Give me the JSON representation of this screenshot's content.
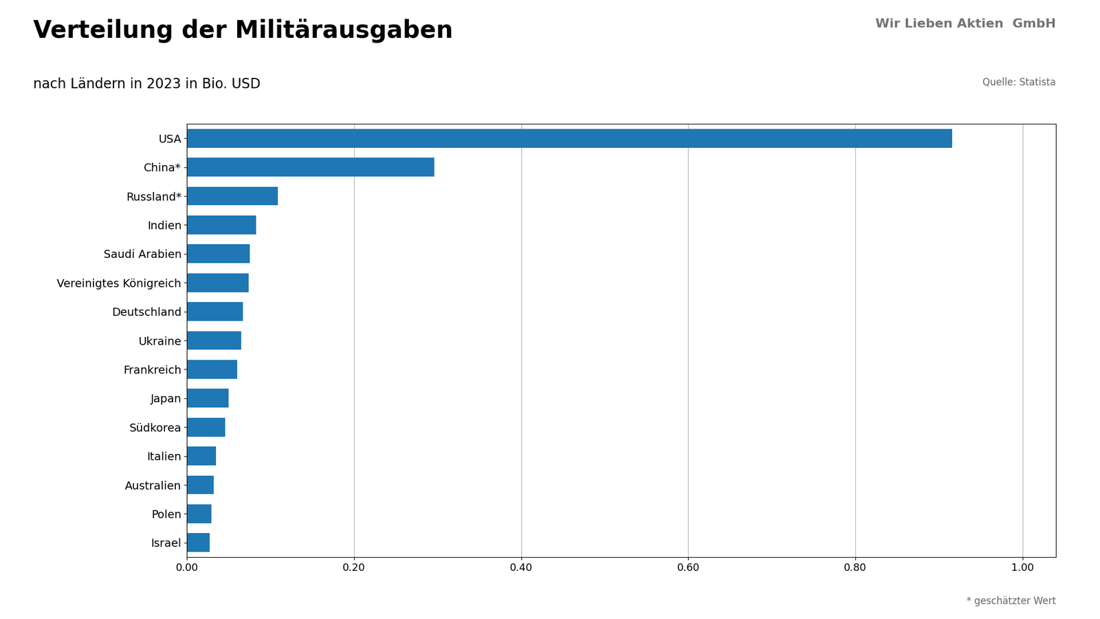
{
  "chart_data": {
    "type": "bar",
    "orientation": "horizontal",
    "title": "Verteilung der Militärausgaben",
    "subtitle": "nach Ländern in 2023 in Bio. USD",
    "source": "Quelle: Statista",
    "footnote": "* geschätzter Wert",
    "annotations": [
      "Wir Lieben Aktien",
      "GmbH"
    ],
    "categories": [
      "USA",
      "China*",
      "Russland*",
      "Indien",
      "Saudi Arabien",
      "Vereinigtes Königreich",
      "Deutschland",
      "Ukraine",
      "Frankreich",
      "Japan",
      "Südkorea",
      "Italien",
      "Australien",
      "Polen",
      "Israel"
    ],
    "values": [
      0.916,
      0.296,
      0.109,
      0.083,
      0.075,
      0.074,
      0.067,
      0.065,
      0.06,
      0.05,
      0.046,
      0.035,
      0.032,
      0.029,
      0.027
    ],
    "xlim": [
      0,
      1.04
    ],
    "xticks": [
      {
        "value": 0.0,
        "label": "0.00"
      },
      {
        "value": 0.2,
        "label": "0.20"
      },
      {
        "value": 0.4,
        "label": "0.40"
      },
      {
        "value": 0.6,
        "label": "0.60"
      },
      {
        "value": 0.8,
        "label": "0.80"
      },
      {
        "value": 1.0,
        "label": "1.00"
      }
    ],
    "grid": true
  }
}
